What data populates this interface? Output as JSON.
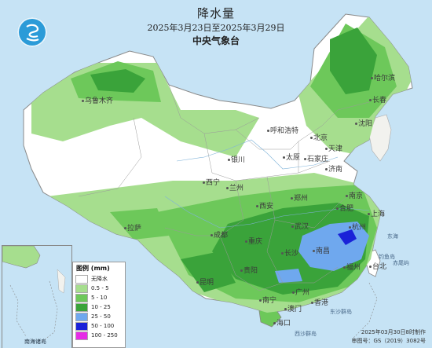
{
  "header": {
    "title": "降水量",
    "date_range": "2025年3月23日至2025年3月29日",
    "agency": "中央气象台"
  },
  "cities": [
    {
      "id": "urumqi",
      "name": "乌鲁木齐"
    },
    {
      "id": "harbin",
      "name": "哈尔滨"
    },
    {
      "id": "changchun",
      "name": "长春"
    },
    {
      "id": "shenyang",
      "name": "沈阳"
    },
    {
      "id": "hohhot",
      "name": "呼和浩特"
    },
    {
      "id": "beijing",
      "name": "北京"
    },
    {
      "id": "tianjin",
      "name": "天津"
    },
    {
      "id": "taiyuan",
      "name": "太原"
    },
    {
      "id": "shijiazhuang",
      "name": "石家庄"
    },
    {
      "id": "jinan",
      "name": "济南"
    },
    {
      "id": "yinchuan",
      "name": "银川"
    },
    {
      "id": "xining",
      "name": "西宁"
    },
    {
      "id": "lanzhou",
      "name": "兰州"
    },
    {
      "id": "xian",
      "name": "西安"
    },
    {
      "id": "zhengzhou",
      "name": "郑州"
    },
    {
      "id": "hefei",
      "name": "合肥"
    },
    {
      "id": "nanjing",
      "name": "南京"
    },
    {
      "id": "shanghai",
      "name": "上海"
    },
    {
      "id": "hangzhou",
      "name": "杭州"
    },
    {
      "id": "wuhan",
      "name": "武汉"
    },
    {
      "id": "lhasa",
      "name": "拉萨"
    },
    {
      "id": "chengdu",
      "name": "成都"
    },
    {
      "id": "chongqing",
      "name": "重庆"
    },
    {
      "id": "changsha",
      "name": "长沙"
    },
    {
      "id": "nanchang",
      "name": "南昌"
    },
    {
      "id": "fuzhou",
      "name": "福州"
    },
    {
      "id": "guiyang",
      "name": "贵阳"
    },
    {
      "id": "kunming",
      "name": "昆明"
    },
    {
      "id": "nanning",
      "name": "南宁"
    },
    {
      "id": "guangzhou",
      "name": "广州"
    },
    {
      "id": "hongkong",
      "name": "香港"
    },
    {
      "id": "macau",
      "name": "澳门"
    },
    {
      "id": "taipei",
      "name": "台北"
    },
    {
      "id": "haikou",
      "name": "海口"
    }
  ],
  "seas": [
    {
      "id": "east-china-sea",
      "name": "东海"
    },
    {
      "id": "diaoyu",
      "name": "钓鱼岛"
    },
    {
      "id": "chiwei",
      "name": "赤尾屿"
    },
    {
      "id": "dongsha",
      "name": "东沙群岛"
    },
    {
      "id": "xisha",
      "name": "西沙群岛"
    }
  ],
  "inset": {
    "label": "南海诸岛"
  },
  "legend": {
    "title": "图例 (mm)",
    "items": [
      {
        "label": "无降水",
        "color": "#ffffff"
      },
      {
        "label": "0.5 - 5",
        "color": "#a6de8e"
      },
      {
        "label": "5 - 10",
        "color": "#6dc85a"
      },
      {
        "label": "10 - 25",
        "color": "#3aa33a"
      },
      {
        "label": "25 - 50",
        "color": "#6fa8ee"
      },
      {
        "label": "50 - 100",
        "color": "#1a22d8"
      },
      {
        "label": "100 - 250",
        "color": "#e62ce6"
      }
    ]
  },
  "footer": {
    "produced": "2025年03月30日8时制作",
    "approval": "审图号：GS（2019）3082号"
  }
}
